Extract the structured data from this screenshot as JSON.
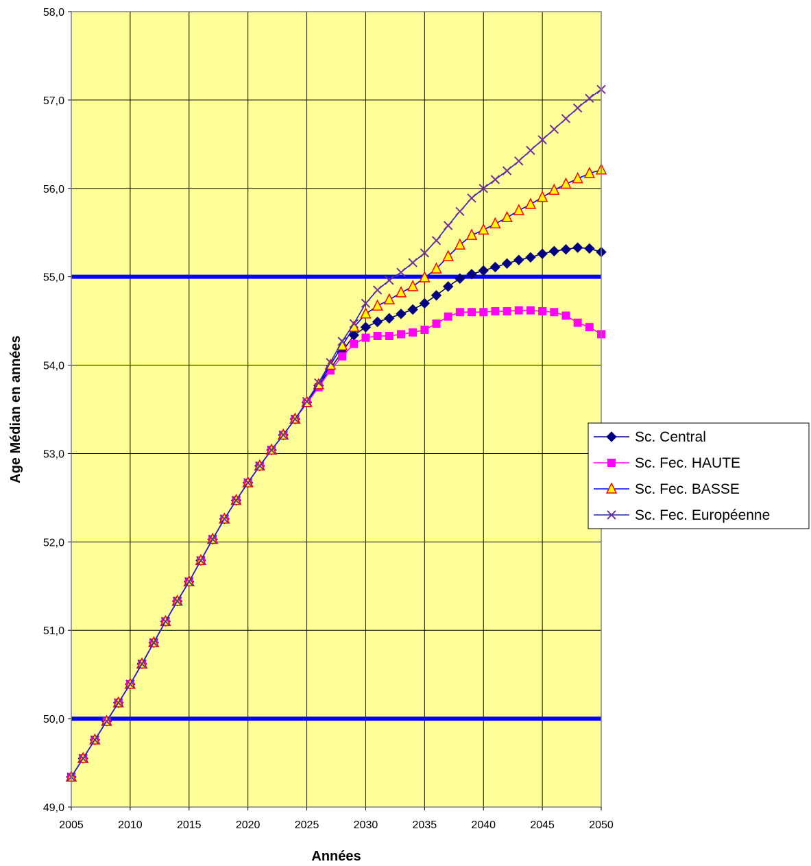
{
  "chart_data": {
    "type": "line",
    "title": "",
    "xlabel": "Années",
    "ylabel": "Age Médian en années",
    "xlim": [
      2005,
      2050
    ],
    "ylim": [
      49.0,
      58.0
    ],
    "x_ticks": [
      "2005",
      "2010",
      "2015",
      "2020",
      "2025",
      "2030",
      "2035",
      "2040",
      "2045",
      "2050"
    ],
    "y_ticks": [
      "49,0",
      "50,0",
      "51,0",
      "52,0",
      "53,0",
      "54,0",
      "55,0",
      "56,0",
      "57,0",
      "58,0"
    ],
    "grid": true,
    "plot_background": "#ffff99",
    "reference_lines": [
      {
        "y": 50.0,
        "color": "#0000ff"
      },
      {
        "y": 55.0,
        "color": "#0000ff"
      }
    ],
    "legend": {
      "position": "right"
    },
    "x": [
      2005,
      2006,
      2007,
      2008,
      2009,
      2010,
      2011,
      2012,
      2013,
      2014,
      2015,
      2016,
      2017,
      2018,
      2019,
      2020,
      2021,
      2022,
      2023,
      2024,
      2025,
      2026,
      2027,
      2028,
      2029,
      2030,
      2031,
      2032,
      2033,
      2034,
      2035,
      2036,
      2037,
      2038,
      2039,
      2040,
      2041,
      2042,
      2043,
      2044,
      2045,
      2046,
      2047,
      2048,
      2049,
      2050
    ],
    "series": [
      {
        "name": "Sc. Central",
        "color": "#000080",
        "marker": "diamond",
        "values": [
          49.34,
          49.55,
          49.76,
          49.97,
          50.18,
          50.39,
          50.62,
          50.86,
          51.1,
          51.33,
          51.55,
          51.79,
          52.03,
          52.26,
          52.47,
          52.67,
          52.86,
          53.04,
          53.21,
          53.39,
          53.58,
          53.77,
          53.96,
          54.15,
          54.34,
          54.43,
          54.49,
          54.53,
          54.58,
          54.63,
          54.7,
          54.79,
          54.89,
          54.98,
          55.03,
          55.07,
          55.11,
          55.15,
          55.19,
          55.22,
          55.26,
          55.29,
          55.31,
          55.33,
          55.32,
          55.28
        ]
      },
      {
        "name": "Sc. Fec. HAUTE",
        "color": "#ff00ff",
        "marker": "square",
        "values": [
          49.34,
          49.55,
          49.76,
          49.97,
          50.18,
          50.39,
          50.62,
          50.86,
          51.1,
          51.33,
          51.55,
          51.79,
          52.03,
          52.26,
          52.47,
          52.67,
          52.86,
          53.04,
          53.21,
          53.39,
          53.57,
          53.75,
          53.94,
          54.1,
          54.24,
          54.31,
          54.33,
          54.33,
          54.35,
          54.37,
          54.4,
          54.47,
          54.55,
          54.6,
          54.6,
          54.6,
          54.61,
          54.61,
          54.62,
          54.62,
          54.61,
          54.6,
          54.56,
          54.48,
          54.43,
          54.35
        ]
      },
      {
        "name": "Sc. Fec. BASSE",
        "color": "#0000ff",
        "marker": "triangle",
        "values": [
          49.34,
          49.55,
          49.76,
          49.97,
          50.18,
          50.39,
          50.62,
          50.86,
          51.1,
          51.33,
          51.55,
          51.79,
          52.03,
          52.26,
          52.47,
          52.67,
          52.86,
          53.04,
          53.21,
          53.39,
          53.58,
          53.78,
          54.0,
          54.22,
          54.43,
          54.58,
          54.67,
          54.74,
          54.82,
          54.89,
          54.99,
          55.09,
          55.23,
          55.36,
          55.47,
          55.53,
          55.6,
          55.67,
          55.75,
          55.82,
          55.9,
          55.98,
          56.05,
          56.11,
          56.17,
          56.21
        ]
      },
      {
        "name": "Sc. Fec. Européenne",
        "color": "#7030a0",
        "marker": "x",
        "values": [
          49.34,
          49.55,
          49.76,
          49.97,
          50.18,
          50.39,
          50.62,
          50.86,
          51.1,
          51.33,
          51.55,
          51.79,
          52.03,
          52.26,
          52.47,
          52.67,
          52.86,
          53.04,
          53.21,
          53.39,
          53.59,
          53.8,
          54.03,
          54.27,
          54.47,
          54.7,
          54.85,
          54.96,
          55.05,
          55.16,
          55.27,
          55.41,
          55.58,
          55.74,
          55.89,
          56.0,
          56.1,
          56.2,
          56.31,
          56.43,
          56.55,
          56.67,
          56.79,
          56.91,
          57.02,
          57.12
        ]
      }
    ]
  }
}
